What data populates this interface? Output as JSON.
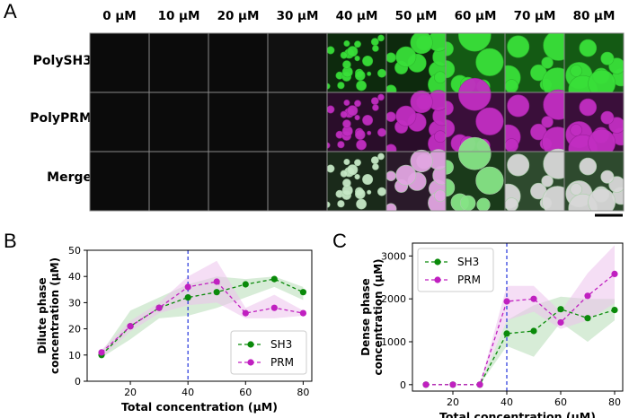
{
  "panels": {
    "a": "A",
    "b": "B",
    "c": "C"
  },
  "concentrations": [
    "0 μM",
    "10 μM",
    "20 μM",
    "30 μM",
    "40 μM",
    "50 μM",
    "60 μM",
    "70 μM",
    "80 μM"
  ],
  "rows": [
    "PolySH3",
    "PolyPRM",
    "Merge"
  ],
  "colors": {
    "sh3": "#0a8a0a",
    "prm": "#c020c0",
    "vline": "#2233dd",
    "sh3_fill": "#b7dcb7",
    "prm_fill": "#ecc2ec"
  },
  "chart_data": [
    {
      "type": "line",
      "panel": "B",
      "xlabel": "Total concentration (μM)",
      "ylabel": "Dilute phase concentration (μM)",
      "ylabel_lines": [
        "Dilute phase",
        "concentration (μM)"
      ],
      "xlim": [
        5,
        83
      ],
      "ylim": [
        0,
        50
      ],
      "xticks": [
        20,
        40,
        60,
        80
      ],
      "yticks": [
        0,
        10,
        20,
        30,
        40,
        50
      ],
      "vline_x": 40,
      "legend_position": "lower-right",
      "x": [
        10,
        20,
        30,
        40,
        50,
        60,
        70,
        80
      ],
      "series": [
        {
          "name": "SH3",
          "values": [
            10,
            21,
            28,
            32,
            34,
            37,
            39,
            34
          ],
          "band_low": [
            9,
            16,
            24,
            25,
            28,
            32,
            36,
            31
          ],
          "band_high": [
            11,
            27,
            32,
            37,
            40,
            39,
            40,
            36
          ]
        },
        {
          "name": "PRM",
          "values": [
            11,
            21,
            28,
            36,
            38,
            26,
            28,
            26
          ],
          "band_low": [
            9,
            19,
            26,
            29,
            30,
            24,
            24,
            25
          ],
          "band_high": [
            12,
            23,
            30,
            40,
            46,
            28,
            33,
            27
          ]
        }
      ]
    },
    {
      "type": "line",
      "panel": "C",
      "xlabel": "Total concentration (μM)",
      "ylabel": "Dense phase concentration (μM)",
      "ylabel_lines": [
        "Dense phase",
        "concentration (μM)"
      ],
      "xlim": [
        5,
        83
      ],
      "ylim": [
        -150,
        3300
      ],
      "xticks": [
        20,
        40,
        60,
        80
      ],
      "yticks": [
        0,
        1000,
        2000,
        3000
      ],
      "vline_x": 40,
      "legend_position": "upper-left",
      "x": [
        10,
        20,
        30,
        40,
        50,
        60,
        70,
        80
      ],
      "series": [
        {
          "name": "SH3",
          "values": [
            0,
            0,
            0,
            1190,
            1250,
            1760,
            1550,
            1740
          ],
          "band_low": [
            0,
            0,
            0,
            900,
            650,
            1450,
            1000,
            1500
          ],
          "band_high": [
            0,
            0,
            0,
            1500,
            1850,
            2050,
            2000,
            2000
          ]
        },
        {
          "name": "PRM",
          "values": [
            0,
            0,
            0,
            1940,
            2000,
            1450,
            2070,
            2580
          ],
          "band_low": [
            0,
            0,
            0,
            1500,
            1700,
            1300,
            1500,
            1900
          ],
          "band_high": [
            0,
            0,
            0,
            2300,
            2300,
            1700,
            2600,
            3250
          ]
        }
      ]
    }
  ]
}
